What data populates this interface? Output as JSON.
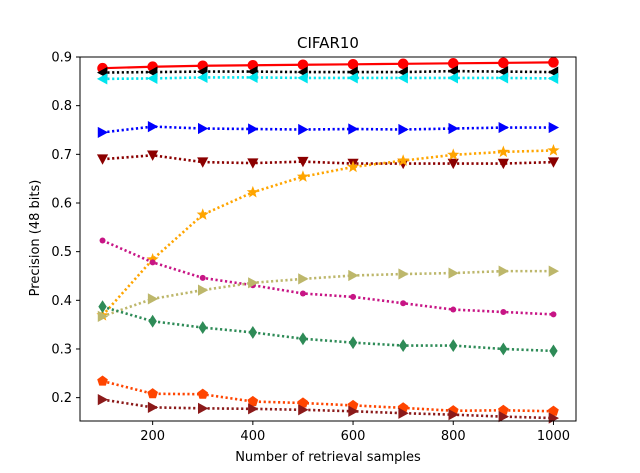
{
  "chart_data": {
    "type": "line",
    "title": "CIFAR10",
    "xlabel": "Number of retrieval samples",
    "ylabel": "Precision (48 bits)",
    "xlim": [
      55,
      1045
    ],
    "ylim": [
      0.152,
      0.9
    ],
    "x": [
      100,
      200,
      300,
      400,
      500,
      600,
      700,
      800,
      900,
      1000
    ],
    "xticks": [
      200,
      400,
      600,
      800,
      1000
    ],
    "xtick_labels": [
      "200",
      "400",
      "600",
      "800",
      "1000"
    ],
    "yticks": [
      0.2,
      0.3,
      0.4,
      0.5,
      0.6,
      0.7,
      0.8,
      0.9
    ],
    "ytick_labels": [
      "0.2",
      "0.3",
      "0.4",
      "0.5",
      "0.6",
      "0.7",
      "0.8",
      "0.9"
    ],
    "legend": "none",
    "grid": false,
    "series": [
      {
        "name": "series-red",
        "color": "#ff0000",
        "line": "solid",
        "marker": "circle",
        "values": [
          0.877,
          0.88,
          0.882,
          0.883,
          0.884,
          0.885,
          0.886,
          0.887,
          0.888,
          0.889
        ]
      },
      {
        "name": "series-black",
        "color": "#000000",
        "line": "dotted",
        "marker": "triangle-left",
        "values": [
          0.868,
          0.869,
          0.87,
          0.87,
          0.869,
          0.869,
          0.869,
          0.871,
          0.87,
          0.869
        ]
      },
      {
        "name": "series-cyan",
        "color": "#00e5ee",
        "line": "dotted",
        "marker": "triangle-left",
        "values": [
          0.855,
          0.856,
          0.858,
          0.858,
          0.857,
          0.857,
          0.857,
          0.857,
          0.857,
          0.856
        ]
      },
      {
        "name": "series-blue",
        "color": "#0000ff",
        "line": "dotted",
        "marker": "triangle-right",
        "values": [
          0.745,
          0.757,
          0.753,
          0.752,
          0.751,
          0.752,
          0.751,
          0.753,
          0.755,
          0.755
        ]
      },
      {
        "name": "series-darkred",
        "color": "#8b0000",
        "line": "dotted",
        "marker": "triangle-down",
        "values": [
          0.69,
          0.698,
          0.684,
          0.682,
          0.685,
          0.681,
          0.681,
          0.681,
          0.681,
          0.684
        ]
      },
      {
        "name": "series-orange",
        "color": "#ffa500",
        "line": "dotted",
        "marker": "star",
        "values": [
          0.369,
          0.484,
          0.576,
          0.622,
          0.654,
          0.674,
          0.687,
          0.699,
          0.705,
          0.708
        ]
      },
      {
        "name": "series-magenta",
        "color": "#c71585",
        "line": "dotted",
        "marker": "dot",
        "values": [
          0.523,
          0.478,
          0.446,
          0.431,
          0.414,
          0.407,
          0.394,
          0.381,
          0.376,
          0.371
        ]
      },
      {
        "name": "series-khaki",
        "color": "#bdb76b",
        "line": "dotted",
        "marker": "triangle-right",
        "values": [
          0.367,
          0.403,
          0.421,
          0.436,
          0.444,
          0.451,
          0.454,
          0.456,
          0.46,
          0.46
        ]
      },
      {
        "name": "series-seagreen",
        "color": "#2e8b57",
        "line": "dotted",
        "marker": "diamond",
        "values": [
          0.387,
          0.357,
          0.344,
          0.334,
          0.321,
          0.313,
          0.307,
          0.307,
          0.3,
          0.296
        ]
      },
      {
        "name": "series-orangered",
        "color": "#ff4500",
        "line": "dotted",
        "marker": "pentagon",
        "values": [
          0.234,
          0.208,
          0.207,
          0.192,
          0.189,
          0.184,
          0.179,
          0.173,
          0.174,
          0.172
        ]
      },
      {
        "name": "series-brown",
        "color": "#8b1a1a",
        "line": "dotted",
        "marker": "triangle-right",
        "values": [
          0.196,
          0.18,
          0.178,
          0.177,
          0.175,
          0.172,
          0.168,
          0.165,
          0.161,
          0.158
        ]
      }
    ]
  }
}
